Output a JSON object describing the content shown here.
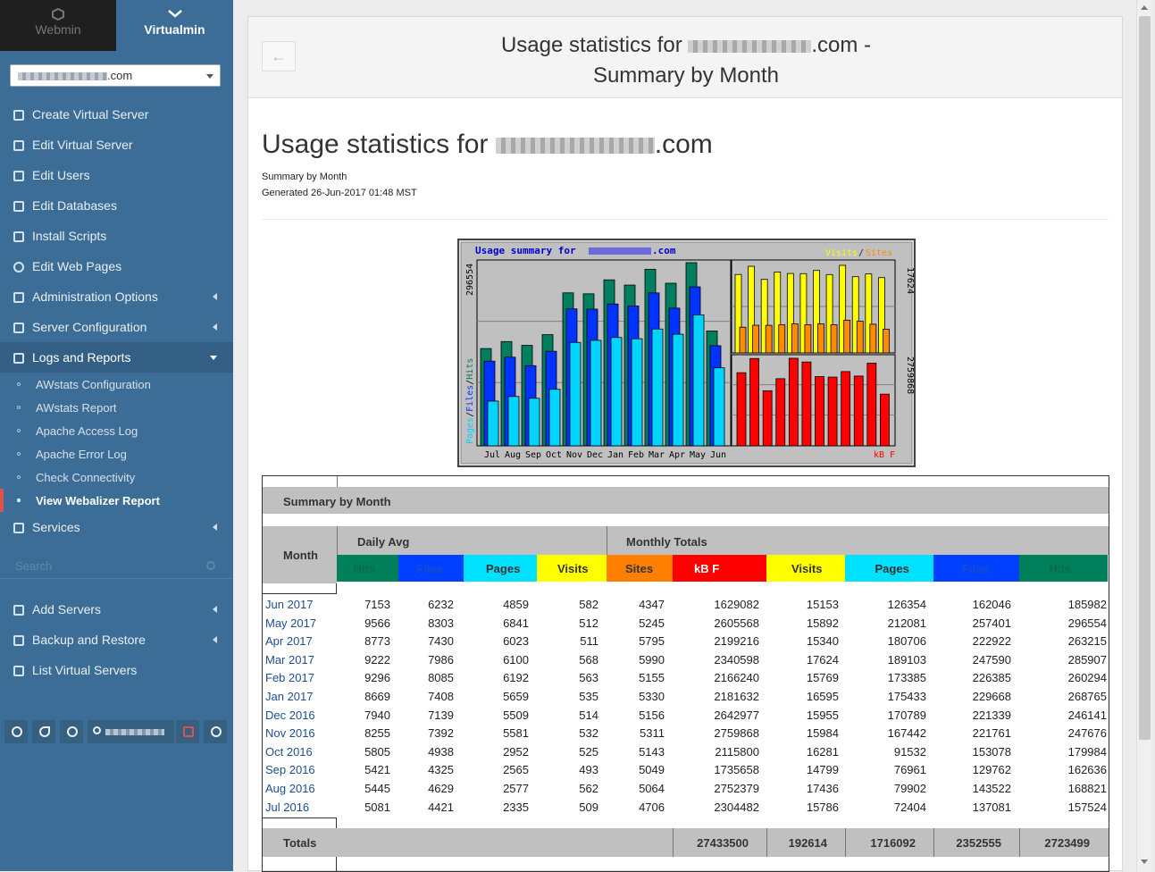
{
  "switcher": {
    "webmin": "Webmin",
    "virtualmin": "Virtualmin"
  },
  "domain_select": {
    "value": ".com"
  },
  "menu": [
    {
      "label": "Create Virtual Server",
      "icon": "plus-square-icon",
      "arrow": false
    },
    {
      "label": "Edit Virtual Server",
      "icon": "edit-icon",
      "arrow": false
    },
    {
      "label": "Edit Users",
      "icon": "users-icon",
      "arrow": false
    },
    {
      "label": "Edit Databases",
      "icon": "database-icon",
      "arrow": false
    },
    {
      "label": "Install Scripts",
      "icon": "script-icon",
      "arrow": false
    },
    {
      "label": "Edit Web Pages",
      "icon": "globe-icon",
      "arrow": false
    },
    {
      "label": "Administration Options",
      "icon": "key-icon",
      "arrow": true
    },
    {
      "label": "Server Configuration",
      "icon": "gears-icon",
      "arrow": true
    },
    {
      "label": "Logs and Reports",
      "icon": "file-icon",
      "arrow": true
    }
  ],
  "submenu": [
    {
      "label": "AWstats Configuration"
    },
    {
      "label": "AWstats Report"
    },
    {
      "label": "Apache Access Log"
    },
    {
      "label": "Apache Error Log"
    },
    {
      "label": "Check Connectivity"
    },
    {
      "label": "View Webalizer Report"
    }
  ],
  "services": {
    "label": "Services",
    "icon": "sitemap-icon"
  },
  "search": {
    "placeholder": "Search"
  },
  "menu2": [
    {
      "label": "Add Servers",
      "icon": "plus-icon"
    },
    {
      "label": "Backup and Restore",
      "icon": "save-icon"
    },
    {
      "label": "List Virtual Servers",
      "icon": "list-icon"
    }
  ],
  "header": {
    "title_prefix": "Usage statistics for",
    "title_suffix": ".com -",
    "title_line2": "Summary by Month"
  },
  "report": {
    "h1_prefix": "Usage statistics for",
    "h1_suffix": ".com",
    "subtitle": "Summary by Month",
    "generated": "Generated 26-Jun-2017 01:48 MST"
  },
  "chart_labels": {
    "title_prefix": "Usage summary for",
    "title_suffix": ".com",
    "left_top": "296554",
    "left_axis_pages": "Pages",
    "left_axis_files": "Files",
    "left_axis_hits": "Hits",
    "right_top": "17624",
    "right_mid": "2759868",
    "legend_visits": "Visits",
    "legend_sites": "Sites",
    "kbf": "kB F"
  },
  "chart_data": {
    "type": "bar",
    "categories": [
      "Jul",
      "Aug",
      "Sep",
      "Oct",
      "Nov",
      "Dec",
      "Jan",
      "Feb",
      "Mar",
      "Apr",
      "May",
      "Jun"
    ],
    "series": [
      {
        "name": "Hits",
        "color": "#007f5f",
        "values": [
          157524,
          168821,
          162636,
          179984,
          247676,
          246141,
          268765,
          260294,
          285907,
          263215,
          296554,
          185982
        ]
      },
      {
        "name": "Files",
        "color": "#0033ff",
        "values": [
          137081,
          143522,
          129762,
          153078,
          221761,
          221339,
          229668,
          226385,
          247590,
          222922,
          257401,
          162046
        ]
      },
      {
        "name": "Pages",
        "color": "#00d4ff",
        "values": [
          72404,
          79902,
          76961,
          91532,
          167442,
          170789,
          175433,
          173385,
          189103,
          180706,
          212081,
          126354
        ]
      },
      {
        "name": "Visits",
        "color": "#ffff00",
        "values": [
          15786,
          17436,
          14799,
          16281,
          15984,
          15955,
          16595,
          15769,
          17624,
          15340,
          15892,
          15153
        ]
      },
      {
        "name": "Sites",
        "color": "#ff8c00",
        "values": [
          4706,
          5064,
          5049,
          5143,
          5311,
          5156,
          5330,
          5155,
          5990,
          5795,
          5245,
          4347
        ]
      },
      {
        "name": "kB F",
        "color": "#ff0000",
        "values": [
          2304482,
          2752379,
          1735658,
          2115800,
          2759868,
          2642977,
          2181632,
          2166240,
          2340598,
          2199216,
          2605568,
          1629082
        ]
      }
    ],
    "ylim_hits": [
      0,
      296554
    ],
    "ylim_visits": [
      0,
      17624
    ],
    "ylim_kbf": [
      0,
      2759868
    ]
  },
  "table": {
    "title": "Summary by Month",
    "month_hdr": "Month",
    "daily_hdr": "Daily Avg",
    "monthly_hdr": "Monthly Totals",
    "cols": [
      {
        "label": "Hits",
        "bg": "#00805a",
        "fg": "#0b6b4a"
      },
      {
        "label": "Files",
        "bg": "#0040ff",
        "fg": "#1a4ad0"
      },
      {
        "label": "Pages",
        "bg": "#00e0ff",
        "fg": "#333"
      },
      {
        "label": "Visits",
        "bg": "#ffff00",
        "fg": "#333"
      },
      {
        "label": "Sites",
        "bg": "#ff8000",
        "fg": "#333"
      },
      {
        "label": "kB F",
        "bg": "#ff0000",
        "fg": "#fff"
      },
      {
        "label": "Visits",
        "bg": "#ffff00",
        "fg": "#333"
      },
      {
        "label": "Pages",
        "bg": "#00e0ff",
        "fg": "#333"
      },
      {
        "label": "Files",
        "bg": "#0040ff",
        "fg": "#1a4ad0"
      },
      {
        "label": "Hits",
        "bg": "#00805a",
        "fg": "#0b6b4a"
      }
    ],
    "rows": [
      {
        "month": "Jun 2017",
        "vals": [
          "7153",
          "6232",
          "4859",
          "582",
          "4347",
          "1629082",
          "15153",
          "126354",
          "162046",
          "185982"
        ]
      },
      {
        "month": "May 2017",
        "vals": [
          "9566",
          "8303",
          "6841",
          "512",
          "5245",
          "2605568",
          "15892",
          "212081",
          "257401",
          "296554"
        ]
      },
      {
        "month": "Apr 2017",
        "vals": [
          "8773",
          "7430",
          "6023",
          "511",
          "5795",
          "2199216",
          "15340",
          "180706",
          "222922",
          "263215"
        ]
      },
      {
        "month": "Mar 2017",
        "vals": [
          "9222",
          "7986",
          "6100",
          "568",
          "5990",
          "2340598",
          "17624",
          "189103",
          "247590",
          "285907"
        ]
      },
      {
        "month": "Feb 2017",
        "vals": [
          "9296",
          "8085",
          "6192",
          "563",
          "5155",
          "2166240",
          "15769",
          "173385",
          "226385",
          "260294"
        ]
      },
      {
        "month": "Jan 2017",
        "vals": [
          "8669",
          "7408",
          "5659",
          "535",
          "5330",
          "2181632",
          "16595",
          "175433",
          "229668",
          "268765"
        ]
      },
      {
        "month": "Dec 2016",
        "vals": [
          "7940",
          "7139",
          "5509",
          "514",
          "5156",
          "2642977",
          "15955",
          "170789",
          "221339",
          "246141"
        ]
      },
      {
        "month": "Nov 2016",
        "vals": [
          "8255",
          "7392",
          "5581",
          "532",
          "5311",
          "2759868",
          "15984",
          "167442",
          "221761",
          "247676"
        ]
      },
      {
        "month": "Oct 2016",
        "vals": [
          "5805",
          "4938",
          "2952",
          "525",
          "5143",
          "2115800",
          "16281",
          "91532",
          "153078",
          "179984"
        ]
      },
      {
        "month": "Sep 2016",
        "vals": [
          "5421",
          "4325",
          "2565",
          "493",
          "5049",
          "1735658",
          "14799",
          "76961",
          "129762",
          "162636"
        ]
      },
      {
        "month": "Aug 2016",
        "vals": [
          "5445",
          "4629",
          "2577",
          "562",
          "5064",
          "2752379",
          "17436",
          "79902",
          "143522",
          "168821"
        ]
      },
      {
        "month": "Jul 2016",
        "vals": [
          "5081",
          "4421",
          "2335",
          "509",
          "4706",
          "2304482",
          "15786",
          "72404",
          "137081",
          "157524"
        ]
      }
    ],
    "totals_label": "Totals",
    "totals": [
      "27433500",
      "192614",
      "1716092",
      "2352555",
      "2723499"
    ]
  }
}
